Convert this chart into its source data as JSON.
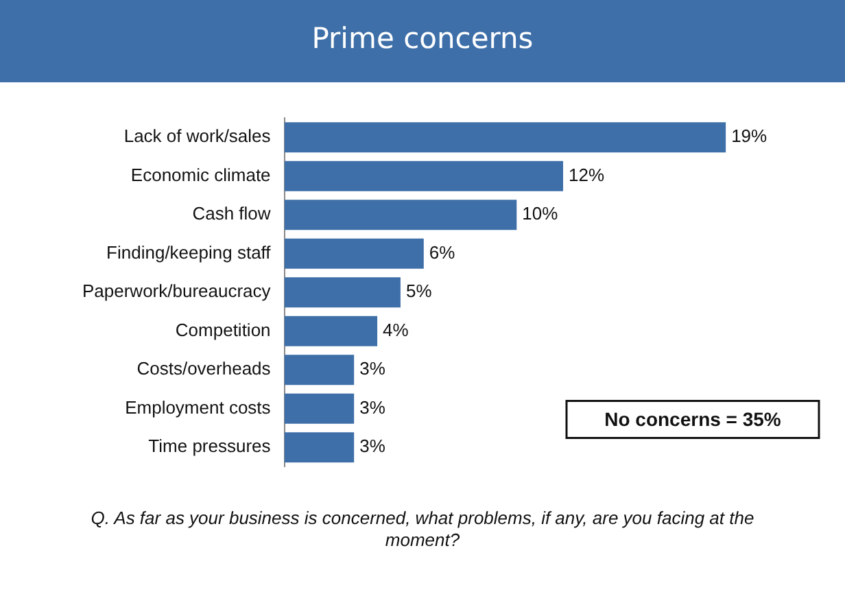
{
  "chart_data": {
    "type": "bar",
    "orientation": "horizontal",
    "title": "Prime concerns",
    "categories": [
      "Lack of work/sales",
      "Economic climate",
      "Cash flow",
      "Finding/keeping staff",
      "Paperwork/bureaucracy",
      "Competition",
      "Costs/overheads",
      "Employment costs",
      "Time pressures"
    ],
    "values": [
      19,
      12,
      10,
      6,
      5,
      4,
      3,
      3,
      3
    ],
    "color": "#3e6fa8",
    "value_labels": [
      "19%",
      "12%",
      "10%",
      "6%",
      "5%",
      "4%",
      "3%",
      "3%",
      "3%"
    ],
    "legend": false,
    "tick_labels": "y",
    "annotations": [
      "No concerns = 35%",
      "Q. As far as your business is concerned, what problems, if any, are you facing at the moment?"
    ]
  }
}
